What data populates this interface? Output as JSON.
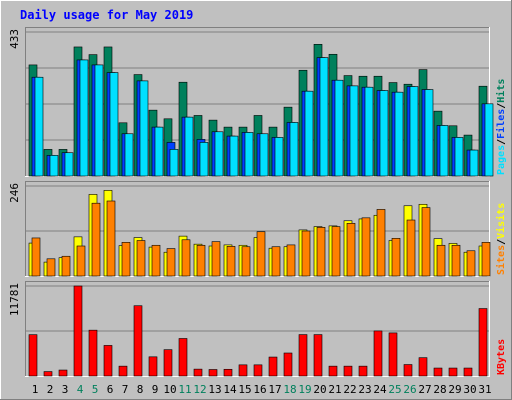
{
  "title": "Daily usage for May 2019",
  "colors": {
    "background": "#c0c0c0",
    "title": "#0000ff",
    "hits": "#00805c",
    "files": "#0040ff",
    "pages": "#00e0ff",
    "visits": "#ffff00",
    "sites": "#ff8000",
    "kbytes": "#ff0000",
    "weekend_day_label": "#00805c",
    "weekday_label": "#000000"
  },
  "chart_data": [
    {
      "type": "bar",
      "panel": "hits-files-pages",
      "ylim": [
        0,
        433
      ],
      "y_tick_label": "433",
      "side_labels": [
        "Pages",
        "Files",
        "Hits"
      ],
      "categories": [
        "1",
        "2",
        "3",
        "4",
        "5",
        "6",
        "7",
        "8",
        "9",
        "10",
        "11",
        "12",
        "13",
        "14",
        "15",
        "16",
        "17",
        "18",
        "19",
        "20",
        "21",
        "22",
        "23",
        "24",
        "25",
        "26",
        "27",
        "28",
        "29",
        "30",
        "31"
      ],
      "series": [
        {
          "name": "Hits",
          "values": [
            334,
            80,
            80,
            388,
            365,
            388,
            160,
            305,
            198,
            172,
            282,
            182,
            168,
            147,
            147,
            182,
            147,
            207,
            318,
            396,
            366,
            302,
            300,
            300,
            281,
            276,
            320,
            195,
            151,
            123,
            270
          ]
        },
        {
          "name": "Files",
          "values": [
            297,
            62,
            70,
            349,
            334,
            311,
            127,
            286,
            147,
            101,
            177,
            110,
            133,
            120,
            131,
            127,
            116,
            161,
            255,
            356,
            288,
            271,
            267,
            257,
            252,
            269,
            260,
            152,
            116,
            78,
            217
          ]
        },
        {
          "name": "Pages",
          "values": [
            297,
            62,
            70,
            349,
            334,
            311,
            127,
            286,
            147,
            80,
            177,
            101,
            133,
            120,
            131,
            127,
            116,
            161,
            255,
            356,
            288,
            271,
            267,
            257,
            252,
            269,
            260,
            152,
            116,
            78,
            217
          ]
        }
      ]
    },
    {
      "type": "bar",
      "panel": "visits-sites",
      "ylim": [
        0,
        246
      ],
      "y_tick_label": "246",
      "side_labels": [
        "Sites",
        "Visits"
      ],
      "categories": [
        "1",
        "2",
        "3",
        "4",
        "5",
        "6",
        "7",
        "8",
        "9",
        "10",
        "11",
        "12",
        "13",
        "14",
        "15",
        "16",
        "17",
        "18",
        "19",
        "20",
        "21",
        "22",
        "23",
        "24",
        "25",
        "26",
        "27",
        "28",
        "29",
        "30",
        "31"
      ],
      "series": [
        {
          "name": "Visits",
          "values": [
            90,
            38,
            50,
            107,
            223,
            234,
            83,
            105,
            79,
            65,
            109,
            87,
            82,
            85,
            84,
            105,
            76,
            80,
            126,
            135,
            137,
            151,
            156,
            166,
            97,
            192,
            196,
            102,
            89,
            65,
            82
          ]
        },
        {
          "name": "Sites",
          "values": [
            104,
            47,
            54,
            82,
            199,
            205,
            92,
            97,
            84,
            75,
            99,
            84,
            94,
            81,
            80,
            121,
            80,
            85,
            123,
            133,
            135,
            144,
            159,
            182,
            103,
            153,
            187,
            84,
            84,
            69,
            92
          ]
        }
      ]
    },
    {
      "type": "bar",
      "panel": "kbytes",
      "ylim": [
        0,
        11781
      ],
      "y_tick_label": "11781",
      "side_labels": [
        "KBytes"
      ],
      "categories": [
        "1",
        "2",
        "3",
        "4",
        "5",
        "6",
        "7",
        "8",
        "9",
        "10",
        "11",
        "12",
        "13",
        "14",
        "15",
        "16",
        "17",
        "18",
        "19",
        "20",
        "21",
        "22",
        "23",
        "24",
        "25",
        "26",
        "27",
        "28",
        "29",
        "30",
        "31"
      ],
      "series": [
        {
          "name": "KBytes",
          "values": [
            5410,
            580,
            780,
            11781,
            6000,
            4000,
            1290,
            9200,
            2510,
            3450,
            4910,
            900,
            850,
            880,
            1460,
            1460,
            2480,
            3010,
            5420,
            5420,
            1290,
            1290,
            1290,
            5900,
            5640,
            1500,
            2400,
            1040,
            1040,
            1040,
            8830
          ]
        }
      ]
    }
  ],
  "weekend_days": [
    4,
    5,
    11,
    12,
    18,
    19,
    25,
    26
  ]
}
